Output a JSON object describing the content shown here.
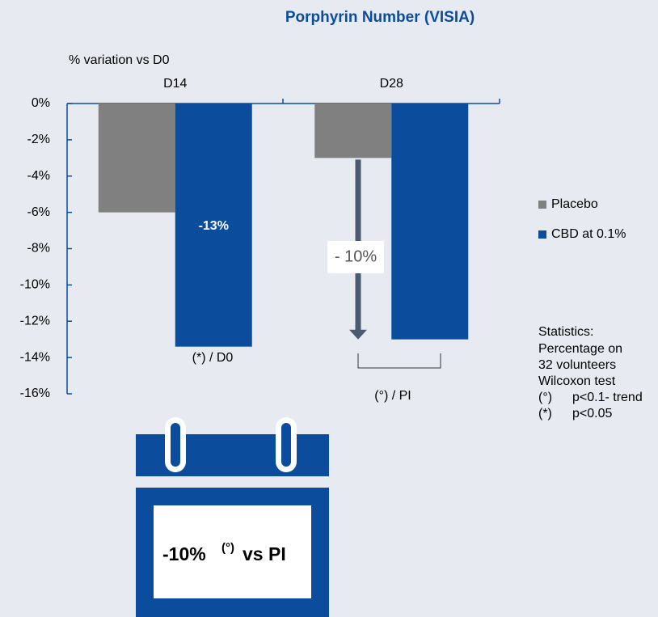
{
  "chart_data": {
    "type": "bar",
    "title": "Porphyrin Number (VISIA)",
    "y_label": "% variation vs D0",
    "categories": [
      "D14",
      "D28"
    ],
    "series": [
      {
        "name": "Placebo",
        "color": "#808080",
        "values": [
          -6,
          -3
        ]
      },
      {
        "name": "CBD at 0.1%",
        "color": "#0b4d9c",
        "values": [
          -13.4,
          -13
        ],
        "value_labels": [
          "-13%",
          null
        ]
      }
    ],
    "ylim": [
      -16,
      0
    ],
    "yticks": [
      {
        "value": 0,
        "label": "0%"
      },
      {
        "value": -2,
        "label": "-2%"
      },
      {
        "value": -4,
        "label": "-4%"
      },
      {
        "value": -6,
        "label": "-6%"
      },
      {
        "value": -8,
        "label": "-8%"
      },
      {
        "value": -10,
        "label": "-10%"
      },
      {
        "value": -12,
        "label": "-12%"
      },
      {
        "value": -14,
        "label": "-14%"
      },
      {
        "value": -16,
        "label": "-16%"
      }
    ],
    "annotations": [
      "(*) / D0",
      "(°) / PI",
      "- 10%"
    ],
    "statistics": [
      "Statistics:",
      "Percentage on",
      "32 volunteers",
      "Wilcoxon test",
      "(°)",
      "p<0.1- trend",
      "(*)",
      "p<0.05"
    ],
    "callout": {
      "value": "-10%",
      "note": "(°)",
      "text": "vs PI"
    }
  }
}
